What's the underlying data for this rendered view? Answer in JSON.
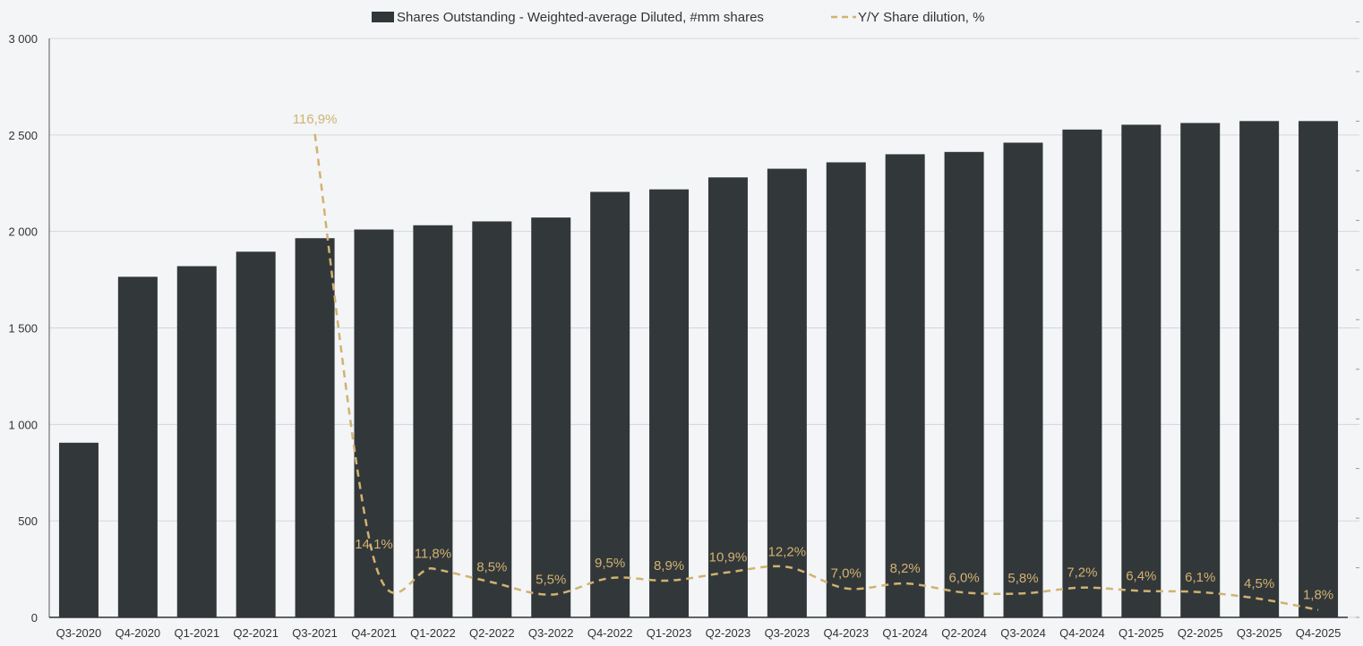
{
  "chart_data": {
    "type": "bar",
    "categories": [
      "Q3-2020",
      "Q4-2020",
      "Q1-2021",
      "Q2-2021",
      "Q3-2021",
      "Q4-2021",
      "Q1-2022",
      "Q2-2022",
      "Q3-2022",
      "Q4-2022",
      "Q1-2023",
      "Q2-2023",
      "Q3-2023",
      "Q4-2023",
      "Q1-2024",
      "Q2-2024",
      "Q3-2024",
      "Q4-2024",
      "Q1-2025",
      "Q2-2025",
      "Q3-2025",
      "Q4-2025"
    ],
    "series": [
      {
        "name": "Shares Outstanding - Weighted-average Diluted, #mm shares",
        "type": "bar",
        "axis": "left",
        "color": "#32373a",
        "values": [
          905,
          1765,
          1820,
          1895,
          1965,
          2010,
          2032,
          2052,
          2072,
          2205,
          2218,
          2280,
          2325,
          2358,
          2400,
          2412,
          2460,
          2528,
          2553,
          2562,
          2572,
          2572
        ]
      },
      {
        "name": "Y/Y Share dilution, %",
        "type": "line",
        "style": "dashed",
        "axis": "right",
        "color": "#d1b270",
        "values": [
          null,
          null,
          null,
          null,
          116.9,
          14.1,
          11.8,
          8.5,
          5.5,
          9.5,
          8.9,
          10.9,
          12.2,
          7.0,
          8.2,
          6.0,
          5.8,
          7.2,
          6.4,
          6.1,
          4.5,
          1.8
        ],
        "labels": [
          "",
          "",
          "",
          "",
          "116,9%",
          "14,1%",
          "11,8%",
          "8,5%",
          "5,5%",
          "9,5%",
          "8,9%",
          "10,9%",
          "12,2%",
          "7,0%",
          "8,2%",
          "6,0%",
          "5,8%",
          "7,2%",
          "6,4%",
          "6,1%",
          "4,5%",
          "1,8%"
        ]
      }
    ],
    "y_ticks": [
      "0",
      "500",
      "1 000",
      "1 500",
      "2 000",
      "2 500",
      "3 000"
    ],
    "ylim": [
      0,
      3000
    ],
    "y2lim": [
      0,
      140
    ],
    "grid": true,
    "legend_position": "top-center"
  }
}
